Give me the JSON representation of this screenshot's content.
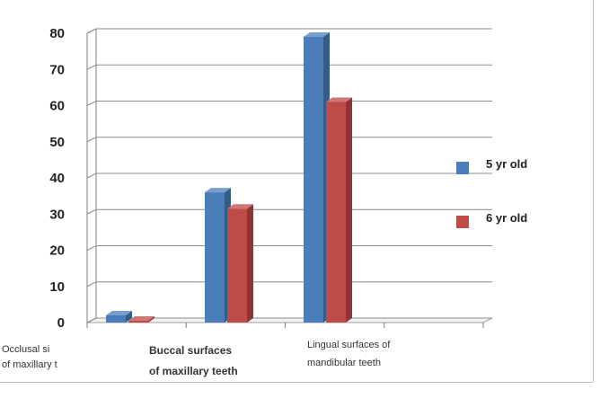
{
  "chart_data": {
    "type": "bar",
    "title": "",
    "xlabel": "",
    "ylabel": "",
    "ylim": [
      0,
      80
    ],
    "yticks": [
      0,
      10,
      20,
      30,
      40,
      50,
      60,
      70,
      80
    ],
    "grid": true,
    "legend_position": "right",
    "categories": [
      [
        "Occlusal sі",
        "of maxillary t"
      ],
      [
        "Buccal surfaces",
        "of maxillary teeth"
      ],
      [
        "Lingual surfaces of",
        "mandibular teeth"
      ]
    ],
    "series": [
      {
        "name": "5 yr old",
        "color": "#4a7ebb",
        "values": [
          2,
          36,
          79
        ]
      },
      {
        "name": "6 yr old",
        "color": "#be4b48",
        "values": [
          0.5,
          31.5,
          61
        ]
      }
    ]
  }
}
